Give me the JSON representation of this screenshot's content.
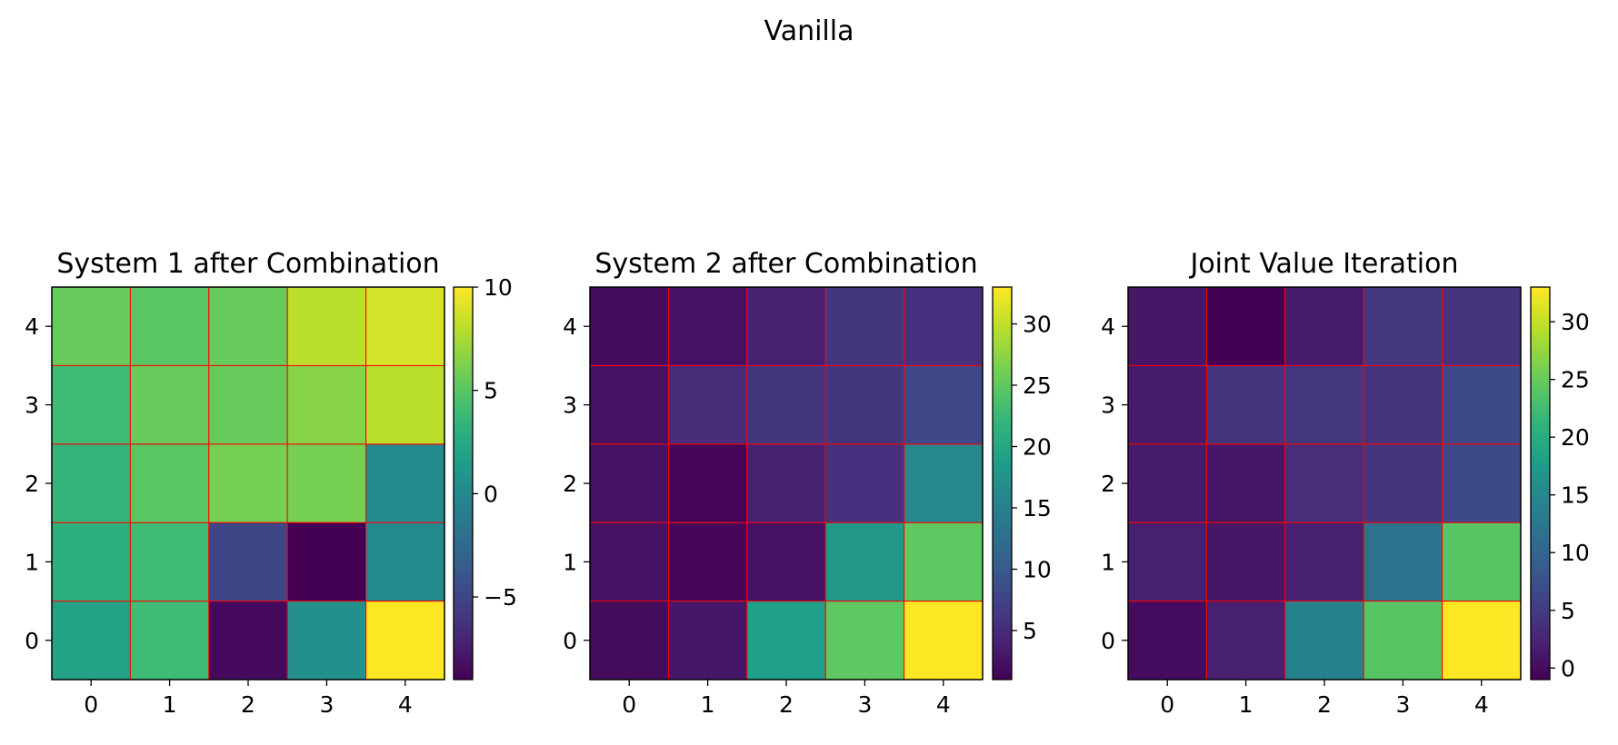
{
  "figure": {
    "suptitle": "Vanilla"
  },
  "colormap": [
    "#440154",
    "#482878",
    "#3e4989",
    "#31688e",
    "#26828e",
    "#1f9e89",
    "#35b779",
    "#6ece58",
    "#b5de2b",
    "#fde725"
  ],
  "grid_line_color": "#ff0000",
  "chart_data": [
    {
      "type": "heatmap",
      "title": "System 1 after Combination",
      "x": [
        0,
        1,
        2,
        3,
        4
      ],
      "y": [
        0,
        1,
        2,
        3,
        4
      ],
      "values": [
        [
          2.0,
          4.0,
          -8.5,
          0.5,
          10.0
        ],
        [
          3.0,
          4.0,
          -5.0,
          -9.0,
          0.0
        ],
        [
          3.5,
          5.0,
          6.0,
          6.0,
          0.0
        ],
        [
          4.0,
          5.5,
          5.5,
          6.5,
          8.0
        ],
        [
          5.5,
          5.0,
          5.5,
          8.0,
          8.8
        ]
      ],
      "vmin": -9,
      "vmax": 10,
      "colorbar_ticks": [
        -5,
        0,
        5,
        10
      ],
      "colorbar_tick_labels": [
        "−5",
        "0",
        "5",
        "10"
      ]
    },
    {
      "type": "heatmap",
      "title": "System 2 after Combination",
      "x": [
        0,
        1,
        2,
        3,
        4
      ],
      "y": [
        0,
        1,
        2,
        3,
        4
      ],
      "values": [
        [
          2.0,
          3.0,
          19.0,
          25.0,
          33.0
        ],
        [
          2.5,
          1.5,
          2.5,
          18.0,
          25.0
        ],
        [
          2.5,
          1.5,
          4.0,
          5.5,
          16.0
        ],
        [
          2.5,
          5.0,
          6.0,
          6.0,
          8.0
        ],
        [
          2.0,
          2.5,
          4.0,
          6.0,
          5.5
        ]
      ],
      "vmin": 1,
      "vmax": 33,
      "colorbar_ticks": [
        5,
        10,
        15,
        20,
        25,
        30
      ],
      "colorbar_tick_labels": [
        "5",
        "10",
        "15",
        "20",
        "25",
        "30"
      ]
    },
    {
      "type": "heatmap",
      "title": "Joint Value Iteration",
      "x": [
        0,
        1,
        2,
        3,
        4
      ],
      "y": [
        0,
        1,
        2,
        3,
        4
      ],
      "values": [
        [
          0.0,
          2.0,
          14.0,
          24.0,
          33.0
        ],
        [
          2.0,
          1.0,
          2.0,
          12.0,
          24.0
        ],
        [
          1.5,
          1.0,
          3.5,
          4.0,
          6.5
        ],
        [
          1.5,
          4.0,
          4.5,
          4.0,
          6.5
        ],
        [
          1.0,
          -1.0,
          1.5,
          4.5,
          4.0
        ]
      ],
      "vmin": -1,
      "vmax": 33,
      "colorbar_ticks": [
        0,
        5,
        10,
        15,
        20,
        25,
        30
      ],
      "colorbar_tick_labels": [
        "0",
        "5",
        "10",
        "15",
        "20",
        "25",
        "30"
      ]
    }
  ]
}
